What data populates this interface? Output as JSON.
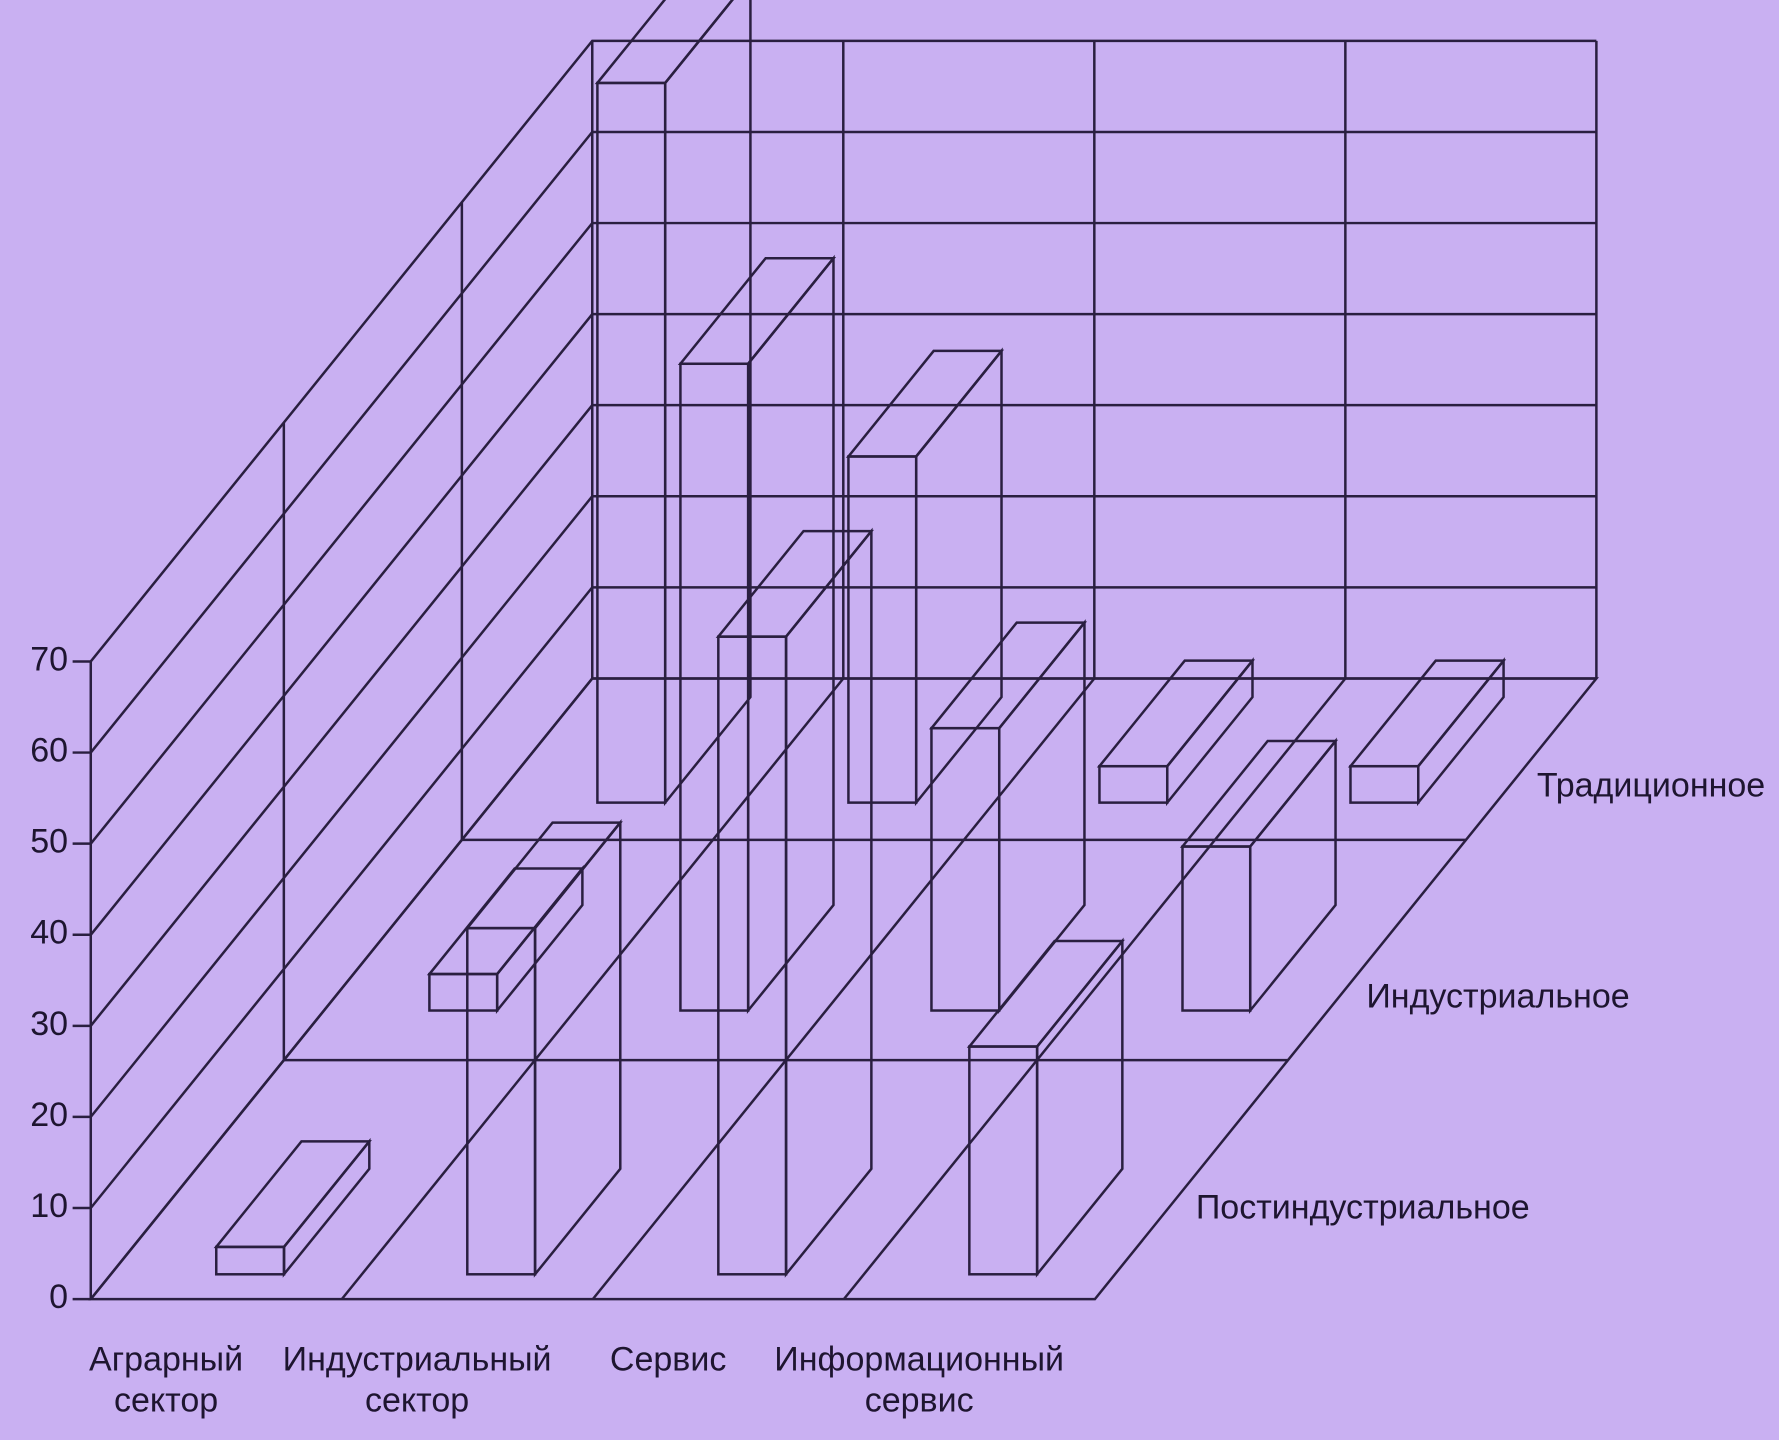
{
  "chart_data": {
    "type": "bar3d",
    "categories": [
      "Аграрный сектор",
      "Индустриальный сектор",
      "Сервис",
      "Информационный сервис"
    ],
    "series": [
      {
        "name": "Постиндустриальное",
        "values": [
          3,
          38,
          70,
          25
        ]
      },
      {
        "name": "Индустриальное",
        "values": [
          4,
          71,
          31,
          18
        ]
      },
      {
        "name": "Традиционное",
        "values": [
          79,
          38,
          4,
          4
        ]
      }
    ],
    "color": "#9a8cc8",
    "ylim": [
      0,
      70
    ],
    "yticks": [
      0,
      10,
      20,
      30,
      40,
      50,
      60,
      70
    ],
    "grid": true
  }
}
